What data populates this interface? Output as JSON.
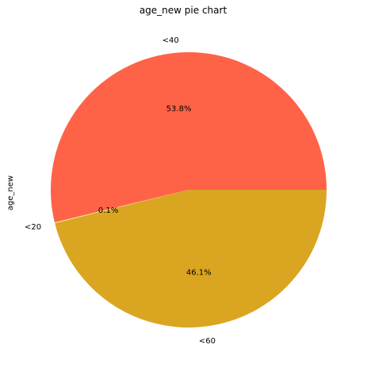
{
  "chart_data": {
    "type": "pie",
    "title": "age_new pie chart",
    "ylabel": "age_new",
    "categories": [
      "<40",
      "<20",
      "<60"
    ],
    "values": [
      53.8,
      0.1,
      46.1
    ],
    "percent_labels": [
      "53.8%",
      "0.1%",
      "46.1%"
    ],
    "colors": [
      "#ff6347",
      "#f0e68c",
      "#daa520"
    ],
    "start_angle": "counterclockwise from right",
    "legend": "none"
  }
}
